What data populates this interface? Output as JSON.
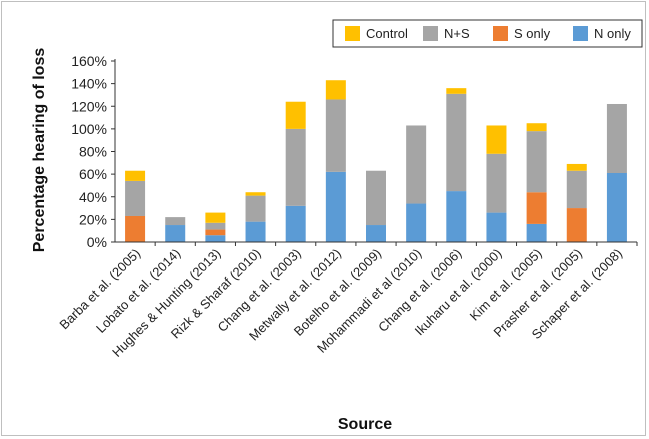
{
  "chart_data": {
    "type": "bar",
    "stacked": true,
    "xlabel": "Source",
    "ylabel": "Percentage hearing of loss",
    "ylim": [
      0,
      160
    ],
    "yticks": [
      "0%",
      "20%",
      "40%",
      "60%",
      "80%",
      "100%",
      "120%",
      "140%",
      "160%"
    ],
    "grid": false,
    "legend_position": "top-right",
    "categories": [
      "Barba et al. (2005)",
      "Lobato et al. (2014)",
      "Hughes & Hunting (2013)",
      "Rizk & Sharaf (2010)",
      "Chang et al. (2003)",
      "Metwally et al. (2012)",
      "Botelho et al. (2009)",
      "Mohammadi et al (2010)",
      "Chang et al. (2006)",
      "Ikuharu et al. (2000)",
      "Kim et al. (2005)",
      "Prasher et al. (2005)",
      "Schaper et al. (2008)"
    ],
    "series": [
      {
        "name": "N only",
        "color": "#5b9bd5",
        "values": [
          0,
          15,
          6,
          18,
          32,
          62,
          15,
          34,
          45,
          26,
          16,
          0,
          61
        ]
      },
      {
        "name": "S only",
        "color": "#ed7d31",
        "values": [
          23,
          0,
          5,
          0,
          0,
          0,
          0,
          0,
          0,
          0,
          28,
          30,
          0
        ]
      },
      {
        "name": "N+S",
        "color": "#a5a5a5",
        "values": [
          31,
          7,
          6,
          23,
          68,
          64,
          48,
          69,
          86,
          52,
          54,
          33,
          61
        ]
      },
      {
        "name": "Control",
        "color": "#ffc000",
        "values": [
          9,
          0,
          9,
          3,
          24,
          17,
          0,
          0,
          5,
          25,
          7,
          6,
          0
        ]
      }
    ],
    "legend_order": [
      "Control",
      "N+S",
      "S only",
      "N only"
    ]
  }
}
